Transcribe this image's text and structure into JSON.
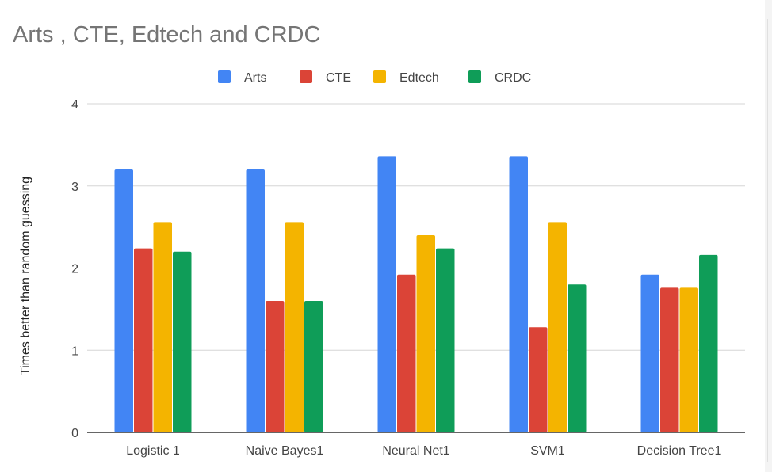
{
  "chart_data": {
    "type": "bar",
    "title": "Arts , CTE, Edtech and CRDC",
    "xlabel": "",
    "ylabel": "Times better than random guessing",
    "ylim": [
      0,
      4
    ],
    "yticks": [
      "0",
      "1",
      "2",
      "3",
      "4"
    ],
    "grid": true,
    "legend_position": "top",
    "categories": [
      "Logistic 1",
      "Naive Bayes1",
      "Neural Net1",
      "SVM1",
      "Decision Tree1"
    ],
    "series": [
      {
        "name": "Arts",
        "color": "#4285f4",
        "values": [
          3.2,
          3.2,
          3.36,
          3.36,
          1.92
        ]
      },
      {
        "name": "CTE",
        "color": "#db4437",
        "values": [
          2.24,
          1.6,
          1.92,
          1.28,
          1.76
        ]
      },
      {
        "name": "Edtech",
        "color": "#f4b400",
        "values": [
          2.56,
          2.56,
          2.4,
          2.56,
          1.76
        ]
      },
      {
        "name": "CRDC",
        "color": "#0f9d58",
        "values": [
          2.2,
          1.6,
          2.24,
          1.8,
          2.16
        ]
      }
    ]
  }
}
